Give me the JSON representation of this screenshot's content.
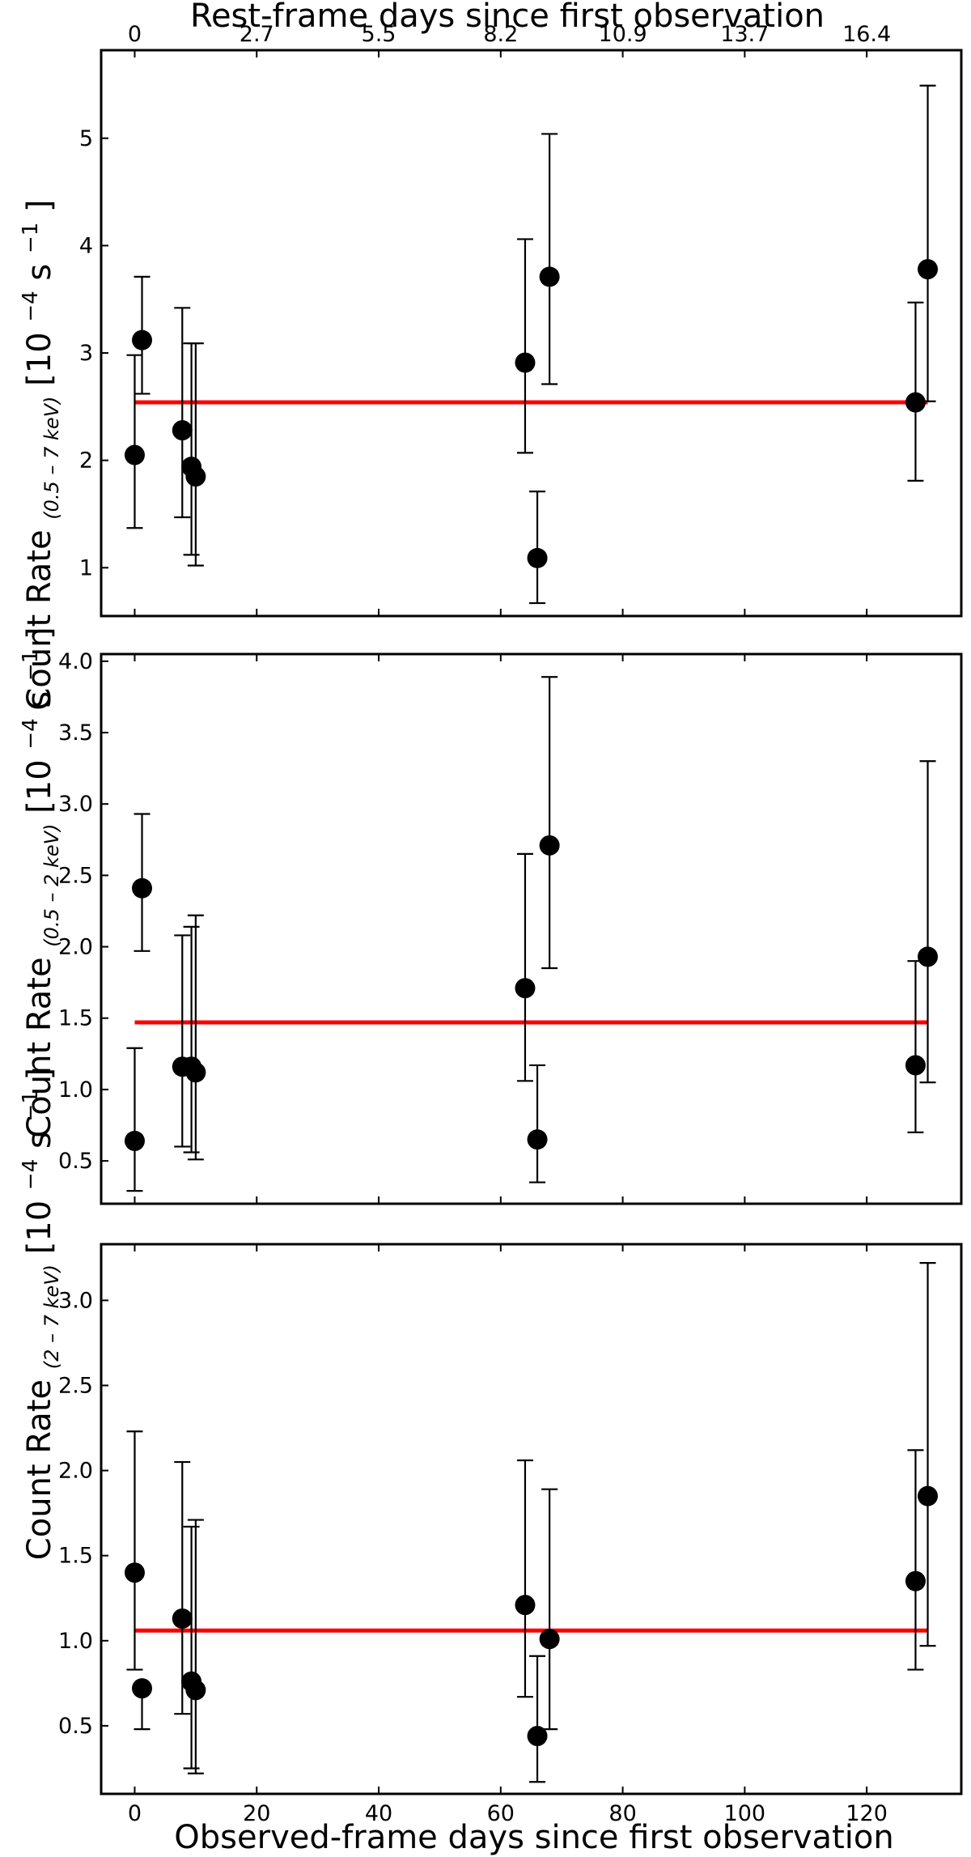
{
  "top_axis": {
    "label": "Rest-frame days since first observation",
    "ticks": [
      "0",
      "2.7",
      "5.5",
      "8.2",
      "10.9",
      "13.7",
      "16.4"
    ],
    "tick_positions_observed": [
      0,
      20,
      40,
      60,
      80,
      100,
      120
    ]
  },
  "bottom_axis": {
    "label": "Observed-frame days since first observation",
    "ticks": [
      0,
      20,
      40,
      60,
      80,
      100,
      120
    ],
    "xlim": [
      -5.5,
      135.5
    ]
  },
  "chart_data": [
    {
      "type": "scatter",
      "ylabel_main": "Count Rate",
      "ylabel_sub": "(0.5 – 7 keV)",
      "ylabel_units_pre": "[10",
      "ylabel_units_exp1": "−4",
      "ylabel_units_mid": " s",
      "ylabel_units_exp2": "−1",
      "ylabel_units_post": "]",
      "ylim": [
        0.55,
        5.82
      ],
      "yticks": [
        1,
        2,
        3,
        4,
        5
      ],
      "ytick_labels": [
        "1",
        "2",
        "3",
        "4",
        "5"
      ],
      "x": [
        0,
        1.2,
        7.8,
        9.3,
        10,
        64,
        66,
        68,
        128,
        130
      ],
      "y": [
        2.05,
        3.12,
        2.28,
        1.94,
        1.85,
        2.91,
        1.09,
        3.71,
        2.54,
        3.78
      ],
      "yerr_low": [
        1.37,
        2.62,
        1.47,
        1.12,
        1.02,
        2.07,
        0.67,
        2.71,
        1.81,
        2.55
      ],
      "yerr_high": [
        2.98,
        3.71,
        3.42,
        3.09,
        3.09,
        4.06,
        1.71,
        5.04,
        3.47,
        5.49
      ],
      "mean_line": 2.54,
      "mean_line_color": "#ff0000",
      "marker_color": "#000000"
    },
    {
      "type": "scatter",
      "ylabel_main": "Count Rate",
      "ylabel_sub": "(0.5 – 2 keV)",
      "ylabel_units_pre": "[10",
      "ylabel_units_exp1": "−4",
      "ylabel_units_mid": " s",
      "ylabel_units_exp2": "−1",
      "ylabel_units_post": "]",
      "ylim": [
        0.2,
        4.05
      ],
      "yticks": [
        0.5,
        1.0,
        1.5,
        2.0,
        2.5,
        3.0,
        3.5,
        4.0
      ],
      "ytick_labels": [
        "0.5",
        "1.0",
        "1.5",
        "2.0",
        "2.5",
        "3.0",
        "3.5",
        "4.0"
      ],
      "x": [
        0,
        1.2,
        7.8,
        9.3,
        10,
        64,
        66,
        68,
        128,
        130
      ],
      "y": [
        0.64,
        2.41,
        1.16,
        1.16,
        1.12,
        1.71,
        0.65,
        2.71,
        1.17,
        1.93
      ],
      "yerr_low": [
        0.29,
        1.97,
        0.6,
        0.56,
        0.51,
        1.06,
        0.35,
        1.85,
        0.7,
        1.05
      ],
      "yerr_high": [
        1.29,
        2.93,
        2.08,
        2.14,
        2.22,
        2.65,
        1.17,
        3.89,
        1.9,
        3.3
      ],
      "mean_line": 1.47,
      "mean_line_color": "#ff0000",
      "marker_color": "#000000"
    },
    {
      "type": "scatter",
      "ylabel_main": "Count Rate",
      "ylabel_sub": "(2 – 7 keV)",
      "ylabel_units_pre": "[10",
      "ylabel_units_exp1": "−4",
      "ylabel_units_mid": " s",
      "ylabel_units_exp2": "−1",
      "ylabel_units_post": "]",
      "ylim": [
        0.1,
        3.33
      ],
      "yticks": [
        0.5,
        1.0,
        1.5,
        2.0,
        2.5,
        3.0
      ],
      "ytick_labels": [
        "0.5",
        "1.0",
        "1.5",
        "2.0",
        "2.5",
        "3.0"
      ],
      "x": [
        0,
        1.2,
        7.8,
        9.3,
        10,
        64,
        66,
        68,
        128,
        130
      ],
      "y": [
        1.4,
        0.72,
        1.13,
        0.76,
        0.71,
        1.21,
        0.44,
        1.01,
        1.35,
        1.85
      ],
      "yerr_low": [
        0.83,
        0.48,
        0.57,
        0.25,
        0.22,
        0.67,
        0.17,
        0.48,
        0.83,
        0.97
      ],
      "yerr_high": [
        2.23,
        0.72,
        2.05,
        1.67,
        1.71,
        2.06,
        0.91,
        1.89,
        2.12,
        3.22
      ],
      "mean_line": 1.06,
      "mean_line_color": "#ff0000",
      "marker_color": "#000000"
    }
  ]
}
